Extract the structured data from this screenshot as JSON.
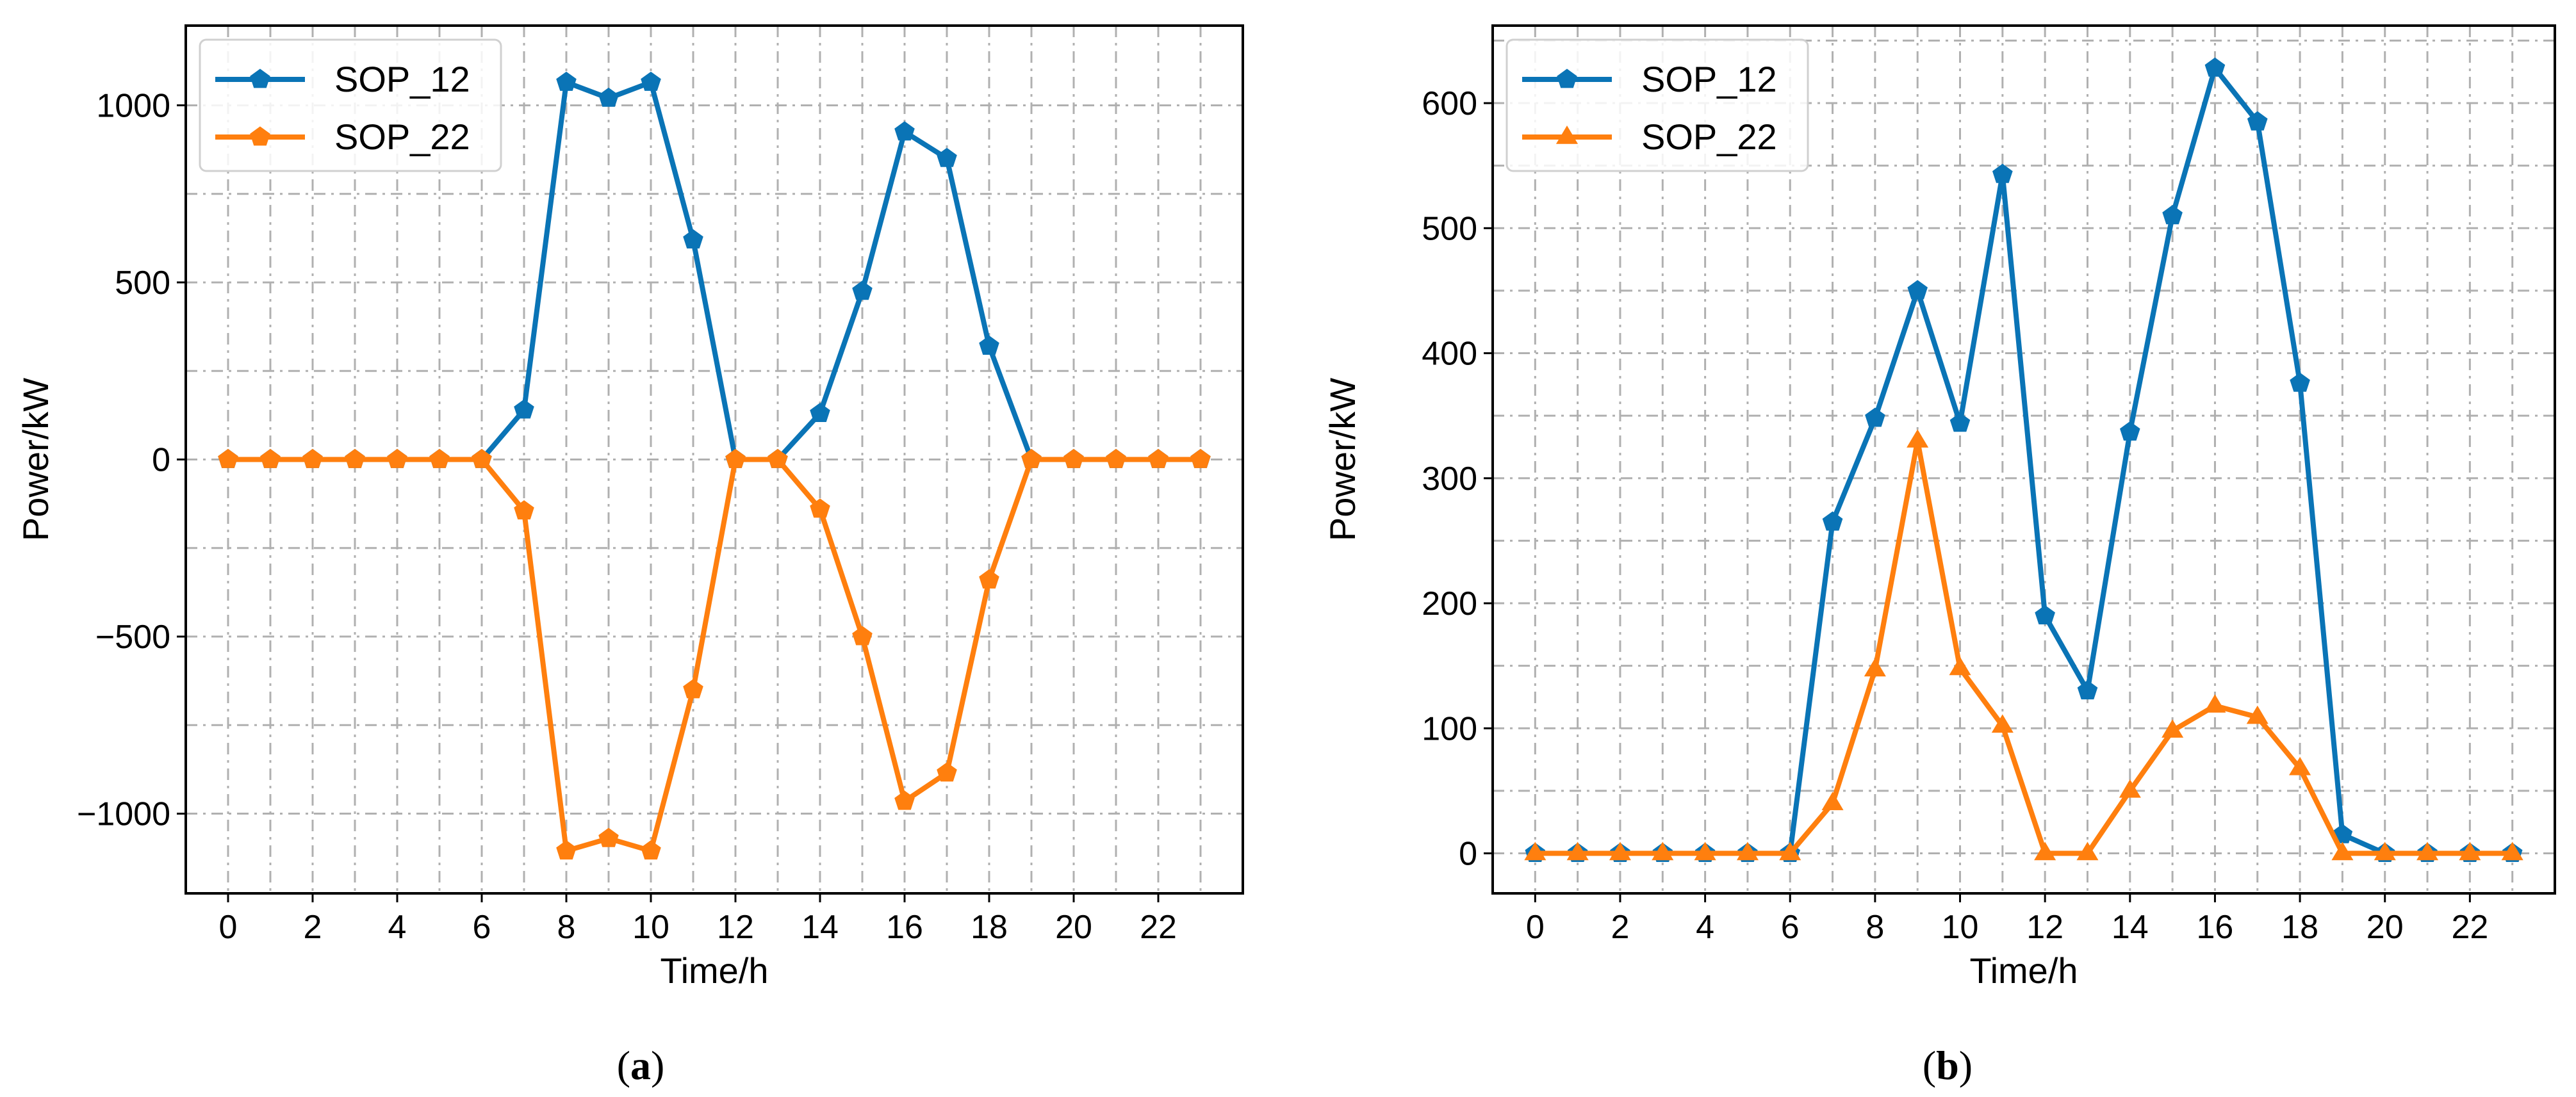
{
  "colors": {
    "sop_12": "#0a74b6",
    "sop_22": "#ff7f0e",
    "grid": "#b0b0b0"
  },
  "chart_data": [
    {
      "type": "line",
      "panel": "a",
      "caption": {
        "open": "(",
        "letter": "a",
        "close": ")"
      },
      "xlabel": "Time/h",
      "ylabel": "Power/kW",
      "xlim": [
        -1,
        24
      ],
      "ylim": [
        -1225,
        1225
      ],
      "xticks": [
        0,
        2,
        4,
        6,
        8,
        10,
        12,
        14,
        16,
        18,
        20,
        22
      ],
      "xtick_labels": [
        "0",
        "2",
        "4",
        "6",
        "8",
        "10",
        "12",
        "14",
        "16",
        "18",
        "20",
        "22"
      ],
      "yticks": [
        -1000,
        -500,
        0,
        500,
        1000
      ],
      "ytick_labels": [
        "−1000",
        "−500",
        "0",
        "500",
        "1000"
      ],
      "grid": true,
      "legend_position": "top-left",
      "x": [
        0,
        1,
        2,
        3,
        4,
        5,
        6,
        7,
        8,
        9,
        10,
        11,
        12,
        13,
        14,
        15,
        16,
        17,
        18,
        19,
        20,
        21,
        22,
        23
      ],
      "series": [
        {
          "name": "SOP_12",
          "color_key": "sop_12",
          "marker": "pentagon",
          "values": [
            0,
            0,
            0,
            0,
            0,
            0,
            0,
            140,
            1065,
            1020,
            1065,
            620,
            0,
            0,
            130,
            475,
            925,
            850,
            320,
            0,
            0,
            0,
            0,
            0
          ]
        },
        {
          "name": "SOP_22",
          "color_key": "sop_22",
          "marker": "pentagon",
          "values": [
            0,
            0,
            0,
            0,
            0,
            0,
            0,
            -145,
            -1105,
            -1070,
            -1105,
            -650,
            0,
            0,
            -140,
            -500,
            -965,
            -885,
            -340,
            0,
            0,
            0,
            0,
            0
          ]
        }
      ]
    },
    {
      "type": "line",
      "panel": "b",
      "caption": {
        "open": "(",
        "letter": "b",
        "close": ")"
      },
      "xlabel": "Time/h",
      "ylabel": "Power/kW",
      "xlim": [
        -1,
        24
      ],
      "ylim": [
        -32,
        662
      ],
      "xticks": [
        0,
        2,
        4,
        6,
        8,
        10,
        12,
        14,
        16,
        18,
        20,
        22
      ],
      "xtick_labels": [
        "0",
        "2",
        "4",
        "6",
        "8",
        "10",
        "12",
        "14",
        "16",
        "18",
        "20",
        "22"
      ],
      "yticks": [
        0,
        100,
        200,
        300,
        400,
        500,
        600
      ],
      "ytick_labels": [
        "0",
        "100",
        "200",
        "300",
        "400",
        "500",
        "600"
      ],
      "grid": true,
      "legend_position": "top-left",
      "x": [
        0,
        1,
        2,
        3,
        4,
        5,
        6,
        7,
        8,
        9,
        10,
        11,
        12,
        13,
        14,
        15,
        16,
        17,
        18,
        19,
        20,
        21,
        22,
        23
      ],
      "series": [
        {
          "name": "SOP_12",
          "color_key": "sop_12",
          "marker": "pentagon",
          "values": [
            0,
            0,
            0,
            0,
            0,
            0,
            0,
            265,
            348,
            450,
            344,
            543,
            190,
            130,
            337,
            510,
            628,
            585,
            376,
            15,
            0,
            0,
            0,
            0
          ]
        },
        {
          "name": "SOP_22",
          "color_key": "sop_22",
          "marker": "triangle",
          "values": [
            0,
            0,
            0,
            0,
            0,
            0,
            0,
            40,
            147,
            330,
            148,
            102,
            0,
            0,
            50,
            98,
            118,
            109,
            68,
            0,
            0,
            0,
            0,
            0
          ]
        }
      ]
    }
  ]
}
